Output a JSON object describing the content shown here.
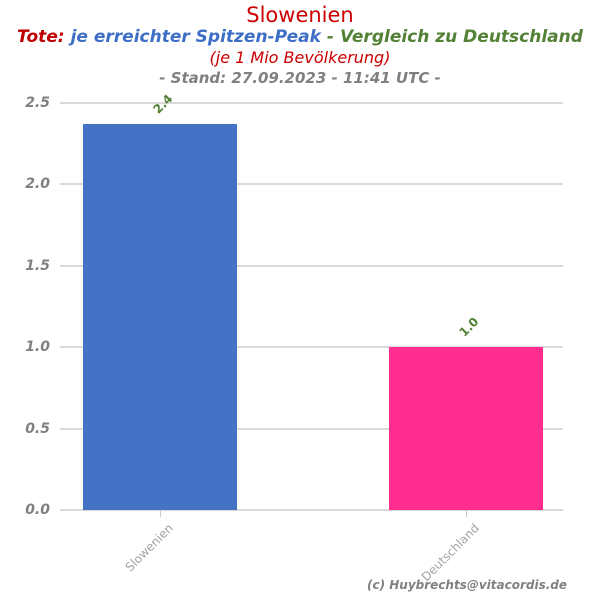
{
  "header": {
    "title": "Slowenien",
    "subtitle_parts": [
      {
        "text": "Tote:",
        "color": "#c00000"
      },
      {
        "text": "je erreichter Spitzen-Peak",
        "color": "#3e6fc6"
      },
      {
        "text": "-",
        "color": "#538135"
      },
      {
        "text": "Vergleich zu Deutschland",
        "color": "#538135"
      }
    ],
    "unit_note": "(je 1 Mio Bevölkerung)",
    "stand_note": "- Stand: 27.09.2023 - 11:41 UTC -"
  },
  "footer": {
    "copyright": "(c) Huybrechts@vitacordis.de"
  },
  "chart_data": {
    "type": "bar",
    "title": "Slowenien",
    "categories": [
      "Slowenien",
      "Deutschland"
    ],
    "values": [
      2.37,
      1.0
    ],
    "value_labels": [
      "2.4",
      "1.0"
    ],
    "bar_colors": [
      "#4472c4",
      "#ff2e8e"
    ],
    "value_label_color": "#538135",
    "xlabel": "",
    "ylabel": "",
    "ylim": [
      0,
      2.5
    ],
    "yticks": [
      0.0,
      0.5,
      1.0,
      1.5,
      2.0,
      2.5
    ],
    "ytick_labels": [
      "0.0",
      "0.5",
      "1.0",
      "1.5",
      "2.0",
      "2.5"
    ],
    "grid": true,
    "grid_color": "#d9d9d9",
    "ytick_label_color": "#808080",
    "xtick_label_color": "#a3a3a3",
    "legend": false
  }
}
